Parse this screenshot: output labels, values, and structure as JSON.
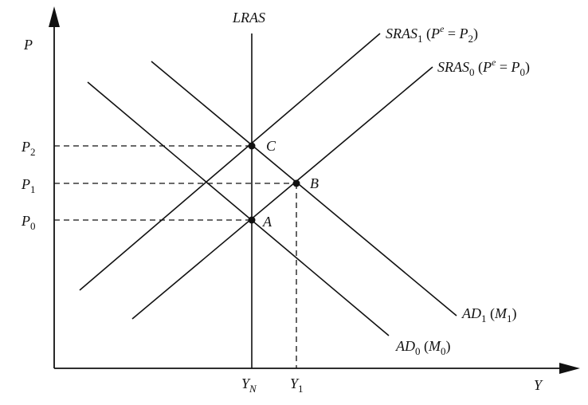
{
  "axes": {
    "y_label": "P",
    "x_label": "Y"
  },
  "price_levels": [
    {
      "base": "P",
      "sub": "2"
    },
    {
      "base": "P",
      "sub": "1"
    },
    {
      "base": "P",
      "sub": "0"
    }
  ],
  "output_levels": [
    {
      "base": "Y",
      "sub": "N"
    },
    {
      "base": "Y",
      "sub": "1"
    }
  ],
  "curves": {
    "lras": "LRAS",
    "sras1": {
      "base": "SRAS",
      "sub": "1",
      "paren_open": " (",
      "pe": "P",
      "pe_sup": "e",
      "eq": " = ",
      "p": "P",
      "p_sub": "2",
      "paren_close": ")"
    },
    "sras0": {
      "base": "SRAS",
      "sub": "0",
      "paren_open": " (",
      "pe": "P",
      "pe_sup": "e",
      "eq": " = ",
      "p": "P",
      "p_sub": "0",
      "paren_close": ")"
    },
    "ad1": {
      "base": "AD",
      "sub": "1",
      "paren_open": " (",
      "m": "M",
      "m_sub": "1",
      "paren_close": ")"
    },
    "ad0": {
      "base": "AD",
      "sub": "0",
      "paren_open": " (",
      "m": "M",
      "m_sub": "0",
      "paren_close": ")"
    }
  },
  "points": {
    "a": "A",
    "b": "B",
    "c": "C"
  }
}
